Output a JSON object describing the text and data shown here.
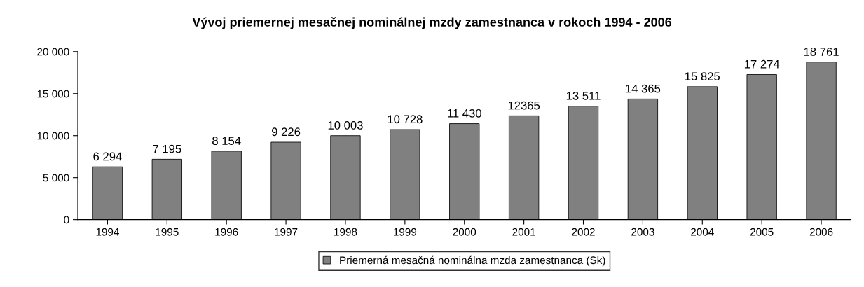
{
  "chart_data": {
    "type": "bar",
    "title": "Vývoj priemernej mesačnej nominálnej mzdy zamestnanca v rokoch 1994 - 2006",
    "categories": [
      "1994",
      "1995",
      "1996",
      "1997",
      "1998",
      "1999",
      "2000",
      "2001",
      "2002",
      "2003",
      "2004",
      "2005",
      "2006"
    ],
    "series": [
      {
        "name": "Priemerná mesačná nominálna mzda zamestnanca (Sk)",
        "color": "#808080",
        "values": [
          6294,
          7195,
          8154,
          9226,
          10003,
          10728,
          11430,
          12365,
          13511,
          14365,
          15825,
          17274,
          18761
        ],
        "value_labels": [
          "6 294",
          "7 195",
          "8 154",
          "9 226",
          "10 003",
          "10 728",
          "11 430",
          "12365",
          "13 511",
          "14 365",
          "15 825",
          "17 274",
          "18 761"
        ]
      }
    ],
    "ylim": [
      0,
      20000
    ],
    "yticks": [
      0,
      {
        "value": 5000,
        "label": "5 000"
      },
      {
        "value": 10000,
        "label": "10 000"
      },
      {
        "value": 15000,
        "label": "15 000"
      },
      {
        "value": 20000,
        "label": "20 000"
      }
    ],
    "grid": false,
    "legend": "bottom"
  }
}
